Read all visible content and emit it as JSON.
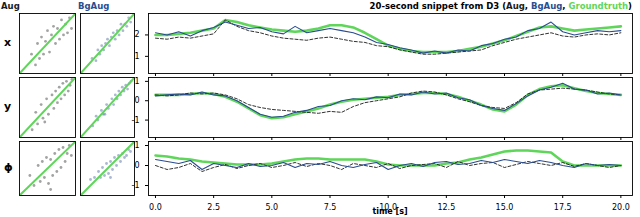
{
  "chart_data": [
    {
      "type": "scatter",
      "title": "Aug",
      "ylabel": "x",
      "xlim": [
        0.2,
        3.0
      ],
      "ylim": [
        0.2,
        3.0
      ],
      "tick_labels": false,
      "series": [
        {
          "color": "#1a1a1a",
          "marker": "circle",
          "x": [
            0.8,
            1.0,
            1.1,
            1.2,
            1.3,
            1.4,
            1.5,
            1.6,
            1.7,
            1.8,
            1.9,
            2.0,
            2.1,
            2.2,
            2.3,
            2.4,
            2.5,
            2.6,
            2.7,
            2.8
          ],
          "values": [
            1.1,
            0.6,
            1.6,
            0.9,
            1.9,
            1.1,
            1.7,
            2.2,
            1.2,
            2.0,
            2.4,
            1.6,
            2.3,
            1.8,
            2.7,
            2.0,
            2.5,
            2.1,
            2.8,
            2.3
          ]
        },
        {
          "type": "line",
          "color": "#5fd65a",
          "x": [
            0.2,
            3.0
          ],
          "values": [
            0.2,
            3.0
          ]
        }
      ]
    },
    {
      "type": "scatter",
      "title": "BgAug",
      "xlim": [
        0.2,
        3.0
      ],
      "ylim": [
        0.2,
        3.0
      ],
      "tick_labels": false,
      "series": [
        {
          "color": "#2a4d8f",
          "marker": "circle",
          "x": [
            0.8,
            1.0,
            1.1,
            1.2,
            1.3,
            1.4,
            1.5,
            1.6,
            1.7,
            1.8,
            1.9,
            2.0,
            2.1,
            2.2,
            2.3,
            2.4,
            2.5,
            2.6,
            2.7,
            2.8
          ],
          "values": [
            0.9,
            0.8,
            1.3,
            1.1,
            1.5,
            1.3,
            1.6,
            1.8,
            1.5,
            1.9,
            2.1,
            1.8,
            2.2,
            2.0,
            2.5,
            2.2,
            2.5,
            2.4,
            2.8,
            2.6
          ]
        },
        {
          "type": "line",
          "color": "#5fd65a",
          "x": [
            0.2,
            3.0
          ],
          "values": [
            0.2,
            3.0
          ]
        }
      ]
    },
    {
      "type": "line",
      "title": "20-second snippet from D3 (Aug, BgAug, Groundtruth)",
      "xlim": [
        -0.3,
        20.5
      ],
      "ylim": [
        0.2,
        3.0
      ],
      "yticks": [
        1,
        2
      ],
      "tick_labels": "y",
      "xticks": [
        {
          "value": 0,
          "label": "0.0"
        },
        {
          "value": 2.5,
          "label": "2.5"
        },
        {
          "value": 5,
          "label": "5.0"
        },
        {
          "value": 7.5,
          "label": "7.5"
        },
        {
          "value": 10,
          "label": "10.0"
        },
        {
          "value": 12.5,
          "label": "12.5"
        },
        {
          "value": 15,
          "label": "15.0"
        },
        {
          "value": 17.5,
          "label": "17.5"
        },
        {
          "value": 20,
          "label": "20.0"
        }
      ],
      "x": [
        0,
        0.5,
        1,
        1.5,
        2,
        2.5,
        3,
        3.5,
        4,
        4.5,
        5,
        5.5,
        6,
        6.5,
        7,
        7.5,
        8,
        8.5,
        9,
        9.5,
        10,
        10.5,
        11,
        11.5,
        12,
        12.5,
        13,
        13.5,
        14,
        14.5,
        15,
        15.5,
        16,
        16.5,
        17,
        17.5,
        18,
        18.5,
        19,
        19.5,
        20
      ],
      "series": [
        {
          "name": "Groundtruth",
          "color": "#5fd65a",
          "line_style": "thick",
          "values": [
            2.0,
            2.0,
            2.05,
            2.1,
            2.2,
            2.3,
            2.7,
            2.6,
            2.45,
            2.35,
            2.25,
            2.2,
            2.15,
            2.2,
            2.3,
            2.45,
            2.45,
            2.35,
            2.1,
            1.8,
            1.5,
            1.35,
            1.25,
            1.2,
            1.2,
            1.2,
            1.25,
            1.35,
            1.45,
            1.6,
            1.75,
            1.95,
            2.15,
            2.35,
            2.4,
            2.3,
            2.2,
            2.25,
            2.3,
            2.35,
            2.4
          ]
        },
        {
          "name": "Aug",
          "color": "#1a1a1a",
          "line_style": "dashed",
          "values": [
            1.85,
            1.8,
            1.9,
            1.85,
            1.95,
            2.05,
            2.7,
            2.4,
            2.2,
            2.1,
            1.95,
            1.85,
            1.8,
            1.75,
            1.85,
            1.9,
            1.8,
            1.7,
            1.65,
            1.5,
            1.45,
            1.3,
            1.2,
            1.1,
            1.1,
            1.15,
            1.2,
            1.25,
            1.3,
            1.5,
            1.65,
            1.8,
            1.9,
            2.0,
            2.1,
            1.95,
            1.9,
            2.0,
            2.05,
            2.0,
            2.1
          ]
        },
        {
          "name": "BgAug",
          "color": "#2a4d8f",
          "line_style": "solid",
          "values": [
            2.1,
            2.0,
            2.15,
            1.95,
            2.2,
            2.35,
            2.6,
            2.45,
            2.3,
            2.35,
            2.15,
            2.05,
            2.4,
            2.1,
            2.2,
            2.3,
            2.2,
            2.1,
            1.9,
            1.65,
            1.55,
            1.4,
            1.3,
            1.15,
            1.25,
            1.15,
            1.3,
            1.25,
            1.5,
            1.6,
            1.8,
            1.9,
            2.2,
            2.3,
            2.6,
            2.15,
            2.0,
            2.1,
            2.2,
            2.15,
            2.2
          ]
        }
      ]
    },
    {
      "type": "scatter",
      "ylabel": "y",
      "xlim": [
        -1.9,
        1.2
      ],
      "ylim": [
        -1.9,
        1.2
      ],
      "tick_labels": false,
      "series": [
        {
          "color": "#1a1a1a",
          "marker": "circle",
          "x": [
            -1.2,
            -1.0,
            -0.9,
            -0.7,
            -0.6,
            -0.4,
            -0.3,
            -0.1,
            0.0,
            0.1,
            0.2,
            0.3,
            0.4,
            0.5,
            0.6,
            0.7,
            0.8,
            0.9,
            1.0,
            -0.5
          ],
          "values": [
            -1.5,
            -0.6,
            -1.2,
            -0.2,
            -0.9,
            0.1,
            -0.7,
            0.3,
            -0.4,
            0.5,
            -0.1,
            0.7,
            0.1,
            0.9,
            0.3,
            1.0,
            0.5,
            0.8,
            1.1,
            -1.1
          ]
        },
        {
          "type": "line",
          "color": "#5fd65a",
          "x": [
            -1.9,
            1.2
          ],
          "values": [
            -1.9,
            1.2
          ]
        }
      ]
    },
    {
      "type": "scatter",
      "xlim": [
        -1.9,
        1.2
      ],
      "ylim": [
        -1.9,
        1.2
      ],
      "tick_labels": false,
      "series": [
        {
          "color": "#2a4d8f",
          "marker": "circle",
          "x": [
            -1.2,
            -1.0,
            -0.9,
            -0.7,
            -0.6,
            -0.4,
            -0.3,
            -0.1,
            0.0,
            0.1,
            0.2,
            0.3,
            0.4,
            0.5,
            0.6,
            0.7,
            0.8,
            0.9,
            1.0,
            -0.5
          ],
          "values": [
            -1.3,
            -0.8,
            -1.0,
            -0.5,
            -0.7,
            -0.2,
            -0.4,
            0.1,
            -0.2,
            0.3,
            0.1,
            0.5,
            0.3,
            0.7,
            0.5,
            0.8,
            0.6,
            0.9,
            1.0,
            -0.7
          ]
        },
        {
          "type": "line",
          "color": "#5fd65a",
          "x": [
            -1.9,
            1.2
          ],
          "values": [
            -1.9,
            1.2
          ]
        }
      ]
    },
    {
      "type": "line",
      "xlim": [
        -0.3,
        20.5
      ],
      "ylim": [
        -1.9,
        1.2
      ],
      "yticks": [
        -1,
        0,
        1
      ],
      "tick_labels": "y",
      "xticks": [
        {
          "value": 0,
          "label": "0.0"
        },
        {
          "value": 2.5,
          "label": "2.5"
        },
        {
          "value": 5,
          "label": "5.0"
        },
        {
          "value": 7.5,
          "label": "7.5"
        },
        {
          "value": 10,
          "label": "10.0"
        },
        {
          "value": 12.5,
          "label": "12.5"
        },
        {
          "value": 15,
          "label": "15.0"
        },
        {
          "value": 17.5,
          "label": "17.5"
        },
        {
          "value": 20,
          "label": "20.0"
        }
      ],
      "x": [
        0,
        0.5,
        1,
        1.5,
        2,
        2.5,
        3,
        3.5,
        4,
        4.5,
        5,
        5.5,
        6,
        6.5,
        7,
        7.5,
        8,
        8.5,
        9,
        9.5,
        10,
        10.5,
        11,
        11.5,
        12,
        12.5,
        13,
        13.5,
        14,
        14.5,
        15,
        15.5,
        16,
        16.5,
        17,
        17.5,
        18,
        18.5,
        19,
        19.5,
        20
      ],
      "series": [
        {
          "color": "#5fd65a",
          "line_style": "thick",
          "values": [
            0.3,
            0.3,
            0.3,
            0.35,
            0.4,
            0.35,
            0.2,
            -0.05,
            -0.4,
            -0.75,
            -0.9,
            -0.85,
            -0.7,
            -0.55,
            -0.4,
            -0.2,
            -0.05,
            0.05,
            0.1,
            0.15,
            0.2,
            0.3,
            0.35,
            0.4,
            0.4,
            0.35,
            0.2,
            0.0,
            -0.2,
            -0.45,
            -0.55,
            -0.2,
            0.3,
            0.6,
            0.75,
            0.8,
            0.65,
            0.5,
            0.4,
            0.35,
            0.3
          ]
        },
        {
          "color": "#1a1a1a",
          "line_style": "dashed",
          "values": [
            0.3,
            0.25,
            0.3,
            0.4,
            0.35,
            0.4,
            0.3,
            0.1,
            -0.2,
            -0.35,
            -0.45,
            -0.5,
            -0.55,
            -0.6,
            -0.65,
            -0.55,
            -0.6,
            -0.3,
            -0.1,
            0.0,
            0.1,
            0.2,
            0.4,
            0.5,
            0.45,
            0.3,
            0.1,
            -0.05,
            -0.25,
            -0.35,
            -0.4,
            -0.1,
            0.35,
            0.55,
            0.6,
            0.65,
            0.6,
            0.55,
            0.45,
            0.35,
            0.3
          ]
        },
        {
          "color": "#2a4d8f",
          "line_style": "solid",
          "values": [
            0.25,
            0.3,
            0.35,
            0.3,
            0.45,
            0.3,
            0.25,
            0.0,
            -0.35,
            -0.7,
            -0.85,
            -0.8,
            -0.6,
            -0.5,
            -0.3,
            -0.25,
            0.0,
            0.1,
            0.05,
            0.2,
            0.15,
            0.35,
            0.3,
            0.45,
            0.35,
            0.4,
            0.15,
            0.05,
            -0.25,
            -0.4,
            -0.5,
            -0.15,
            0.25,
            0.55,
            0.7,
            0.9,
            0.6,
            0.55,
            0.35,
            0.4,
            0.3
          ]
        }
      ]
    },
    {
      "type": "scatter",
      "ylabel": "ϕ",
      "xlim": [
        -1.5,
        1.2
      ],
      "ylim": [
        -1.5,
        1.2
      ],
      "tick_labels": false,
      "series": [
        {
          "color": "#1a1a1a",
          "marker": "circle",
          "x": [
            -1.0,
            -0.8,
            -0.6,
            -0.5,
            -0.4,
            -0.3,
            -0.2,
            -0.1,
            0.0,
            0.1,
            0.2,
            0.3,
            0.4,
            0.5,
            0.6,
            0.7,
            0.8,
            0.9,
            1.0,
            0.0
          ],
          "values": [
            -0.5,
            -1.0,
            0.0,
            -0.8,
            0.2,
            -0.6,
            0.4,
            -0.9,
            0.3,
            -0.5,
            0.6,
            -0.3,
            0.8,
            -0.1,
            0.9,
            0.2,
            0.6,
            1.0,
            0.5,
            -1.2
          ]
        },
        {
          "type": "line",
          "color": "#5fd65a",
          "x": [
            -1.5,
            1.2
          ],
          "values": [
            -1.5,
            1.2
          ]
        }
      ]
    },
    {
      "type": "scatter",
      "xlim": [
        -1.5,
        1.2
      ],
      "ylim": [
        -1.5,
        1.2
      ],
      "tick_labels": false,
      "series": [
        {
          "color": "#2a4d8f",
          "marker": "circle",
          "x": [
            -1.0,
            -0.8,
            -0.6,
            -0.5,
            -0.4,
            -0.3,
            -0.2,
            -0.1,
            0.0,
            0.1,
            0.2,
            0.3,
            0.4,
            0.5,
            0.6,
            0.7,
            0.8,
            0.9,
            1.0,
            0.0
          ],
          "values": [
            -0.7,
            -0.6,
            -0.3,
            -0.6,
            -0.1,
            -0.5,
            0.1,
            -0.4,
            0.2,
            -0.2,
            0.4,
            0.0,
            0.5,
            0.2,
            0.6,
            0.4,
            0.5,
            0.8,
            0.7,
            -0.6
          ]
        },
        {
          "type": "line",
          "color": "#5fd65a",
          "x": [
            -1.5,
            1.2
          ],
          "values": [
            -1.5,
            1.2
          ]
        }
      ]
    },
    {
      "type": "line",
      "xlabel": "time [s]",
      "xlim": [
        -0.3,
        20.5
      ],
      "ylim": [
        -1.5,
        1.2
      ],
      "yticks": [
        -1,
        0,
        1
      ],
      "xticks": [
        {
          "value": 0,
          "label": "0.0"
        },
        {
          "value": 2.5,
          "label": "2.5"
        },
        {
          "value": 5,
          "label": "5.0"
        },
        {
          "value": 7.5,
          "label": "7.5"
        },
        {
          "value": 10,
          "label": "10.0"
        },
        {
          "value": 12.5,
          "label": "12.5"
        },
        {
          "value": 15,
          "label": "15.0"
        },
        {
          "value": 17.5,
          "label": "17.5"
        },
        {
          "value": 20,
          "label": "20.0"
        }
      ],
      "x": [
        0,
        0.5,
        1,
        1.5,
        2,
        2.5,
        3,
        3.5,
        4,
        4.5,
        5,
        5.5,
        6,
        6.5,
        7,
        7.5,
        8,
        8.5,
        9,
        9.5,
        10,
        10.5,
        11,
        11.5,
        12,
        12.5,
        13,
        13.5,
        14,
        14.5,
        15,
        15.5,
        16,
        16.5,
        17,
        17.5,
        18,
        18.5,
        19,
        19.5,
        20
      ],
      "series": [
        {
          "color": "#5fd65a",
          "line_style": "thick",
          "values": [
            0.5,
            0.45,
            0.35,
            0.3,
            0.2,
            0.15,
            0.1,
            0.05,
            0.05,
            0.05,
            0.1,
            0.2,
            0.3,
            0.35,
            0.35,
            0.3,
            0.3,
            0.3,
            0.3,
            0.2,
            0.05,
            0.0,
            0.0,
            0.0,
            0.0,
            0.1,
            0.15,
            0.3,
            0.4,
            0.55,
            0.7,
            0.75,
            0.75,
            0.7,
            0.65,
            0.2,
            0.0,
            0.0,
            0.0,
            0.0,
            0.0
          ]
        },
        {
          "color": "#1a1a1a",
          "line_style": "dashed",
          "values": [
            0.0,
            -0.2,
            -0.1,
            0.1,
            -0.3,
            -0.1,
            0.05,
            -0.15,
            0.0,
            0.1,
            -0.1,
            0.0,
            0.15,
            -0.05,
            0.1,
            0.0,
            -0.2,
            0.1,
            0.0,
            -0.1,
            0.1,
            -0.15,
            0.0,
            0.05,
            0.1,
            -0.1,
            0.2,
            0.0,
            0.1,
            0.15,
            -0.1,
            0.05,
            0.2,
            0.1,
            0.0,
            0.15,
            -0.05,
            0.1,
            0.0,
            -0.1,
            0.0
          ]
        },
        {
          "color": "#2a4d8f",
          "line_style": "solid",
          "values": [
            0.3,
            0.2,
            0.1,
            0.25,
            -0.2,
            0.1,
            0.0,
            -0.1,
            0.1,
            -0.05,
            0.0,
            0.15,
            -0.1,
            0.1,
            0.05,
            0.2,
            0.0,
            -0.1,
            0.05,
            0.15,
            -0.2,
            0.0,
            0.1,
            -0.05,
            0.15,
            0.2,
            0.05,
            0.1,
            0.25,
            0.15,
            0.3,
            0.2,
            0.1,
            0.25,
            0.15,
            0.0,
            -0.1,
            0.1,
            0.0,
            0.05,
            0.0
          ]
        }
      ]
    }
  ]
}
